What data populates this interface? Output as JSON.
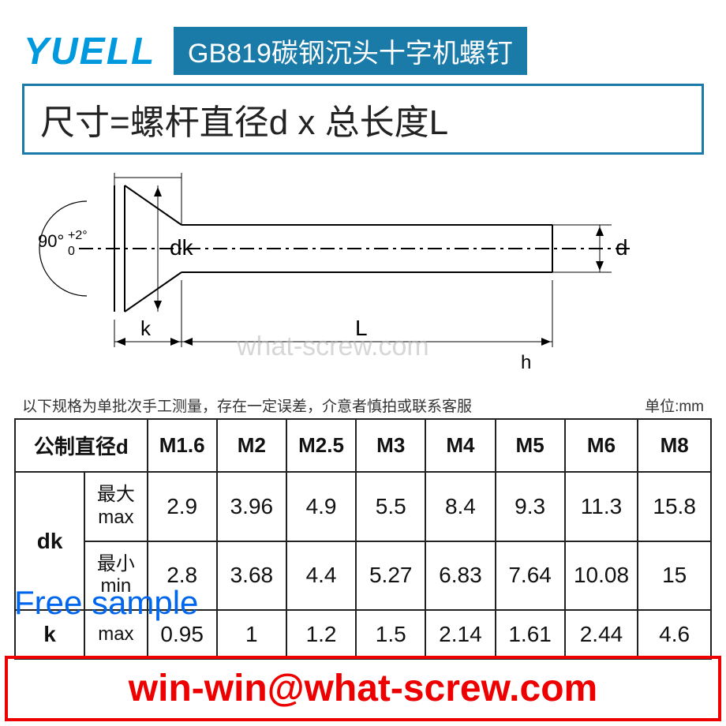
{
  "logo": "YUELL",
  "title": "GB819碳钢沉头十字机螺钉",
  "formula": "尺寸=螺杆直径d x 总长度L",
  "diagram": {
    "angle_label": "90°+2°\n   0",
    "dk_label": "dk",
    "k_label": "k",
    "L_label": "L",
    "d_label": "d",
    "h_label": "h",
    "stroke": "#000000",
    "accent": "#1a7aa8"
  },
  "note_left": "以下规格为单批次手工测量，存在一定误差，介意者慎拍或联系客服",
  "note_right": "单位:mm",
  "watermark": "what-screw.com",
  "free_sample": "Free sample",
  "email": "win-win@what-screw.com",
  "table": {
    "header_label": "公制直径d",
    "sizes": [
      "M1.6",
      "M2",
      "M2.5",
      "M3",
      "M4",
      "M5",
      "M6",
      "M8"
    ],
    "rows": [
      {
        "param": "dk",
        "sub": "最大\nmax",
        "rowspan": 2,
        "vals": [
          "2.9",
          "3.96",
          "4.9",
          "5.5",
          "8.4",
          "9.3",
          "11.3",
          "15.8"
        ]
      },
      {
        "param": "",
        "sub": "最小\nmin",
        "vals": [
          "2.8",
          "3.68",
          "4.4",
          "5.27",
          "6.83",
          "7.64",
          "10.08",
          "15"
        ]
      },
      {
        "param": "k",
        "sub": "max",
        "vals": [
          "0.95",
          "1",
          "1.2",
          "1.5",
          "2.14",
          "1.61",
          "2.44",
          "4.6"
        ]
      }
    ],
    "col_widths": [
      "10%",
      "9%",
      "10%",
      "10%",
      "10%",
      "10%",
      "10%",
      "10%",
      "10.5%",
      "10.5%"
    ],
    "border_color": "#222222",
    "font_size": 28
  },
  "colors": {
    "brand": "#0099dd",
    "title_bg": "#1a7aa8",
    "red": "#e00000",
    "link_blue": "#0066ee"
  }
}
